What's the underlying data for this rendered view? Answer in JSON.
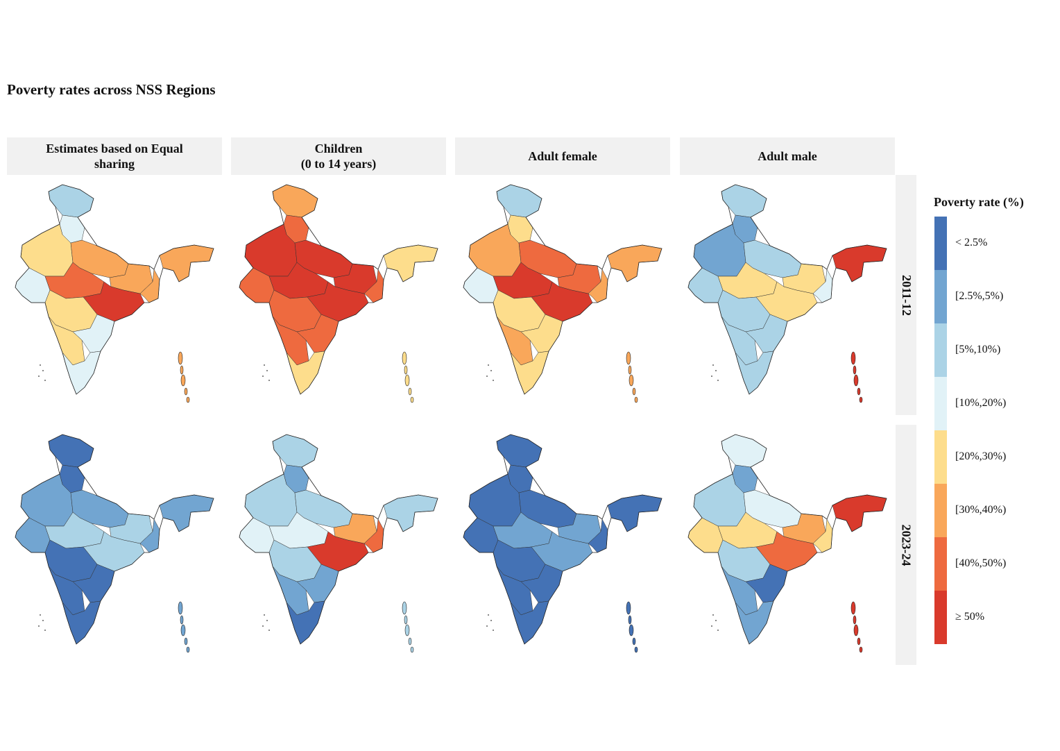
{
  "title": "Poverty rates across NSS Regions",
  "columns": [
    {
      "id": "equal",
      "label": "Estimates based on Equal\nsharing"
    },
    {
      "id": "children",
      "label": "Children\n(0 to 14 years)"
    },
    {
      "id": "female",
      "label": "Adult female"
    },
    {
      "id": "male",
      "label": "Adult male"
    }
  ],
  "rows": [
    {
      "id": "y2011",
      "label": "2011-12"
    },
    {
      "id": "y2023",
      "label": "2023-24"
    }
  ],
  "legend": {
    "title": "Poverty rate (%)",
    "items": [
      {
        "label": "< 2.5%",
        "color": "#4472b5"
      },
      {
        "label": "[2.5%,5%)",
        "color": "#72a5d1"
      },
      {
        "label": "[5%,10%)",
        "color": "#abd3e6"
      },
      {
        "label": "[10%,20%)",
        "color": "#e1f2f7"
      },
      {
        "label": "[20%,30%)",
        "color": "#fddd8c"
      },
      {
        "label": "[30%,40%)",
        "color": "#f9a75a"
      },
      {
        "label": "[40%,50%)",
        "color": "#ee6a3f"
      },
      {
        "label": "≥ 50%",
        "color": "#d93a2c"
      }
    ]
  },
  "map_data": {
    "region_order": [
      "Jammu & Kashmir",
      "Himachal/Punjab",
      "Rajasthan",
      "Uttar Pradesh",
      "Gujarat",
      "Madhya Pradesh",
      "Bihar/Jharkhand",
      "West Bengal",
      "Northeast",
      "Odisha/Chhattisgarh",
      "Maharashtra",
      "Andhra/Telangana",
      "Karnataka",
      "Tamil Nadu/Kerala"
    ],
    "panels": {
      "y2011": {
        "equal": [
          2,
          3,
          4,
          5,
          3,
          6,
          5,
          5,
          5,
          7,
          4,
          3,
          4,
          3
        ],
        "children": [
          5,
          6,
          7,
          7,
          6,
          7,
          7,
          6,
          4,
          7,
          6,
          6,
          6,
          4
        ],
        "female": [
          2,
          4,
          5,
          6,
          3,
          7,
          6,
          5,
          5,
          7,
          4,
          4,
          5,
          4
        ],
        "male": [
          2,
          1,
          1,
          2,
          2,
          4,
          4,
          3,
          7,
          4,
          2,
          2,
          2,
          2
        ]
      },
      "y2023": {
        "equal": [
          0,
          0,
          1,
          1,
          1,
          2,
          2,
          1,
          1,
          2,
          0,
          0,
          0,
          0
        ],
        "children": [
          2,
          1,
          2,
          2,
          3,
          3,
          5,
          6,
          2,
          7,
          2,
          1,
          1,
          0
        ],
        "female": [
          0,
          0,
          0,
          0,
          0,
          1,
          1,
          0,
          0,
          1,
          0,
          0,
          0,
          0
        ],
        "male": [
          3,
          1,
          2,
          3,
          4,
          4,
          5,
          4,
          7,
          6,
          2,
          0,
          1,
          1
        ]
      }
    }
  }
}
